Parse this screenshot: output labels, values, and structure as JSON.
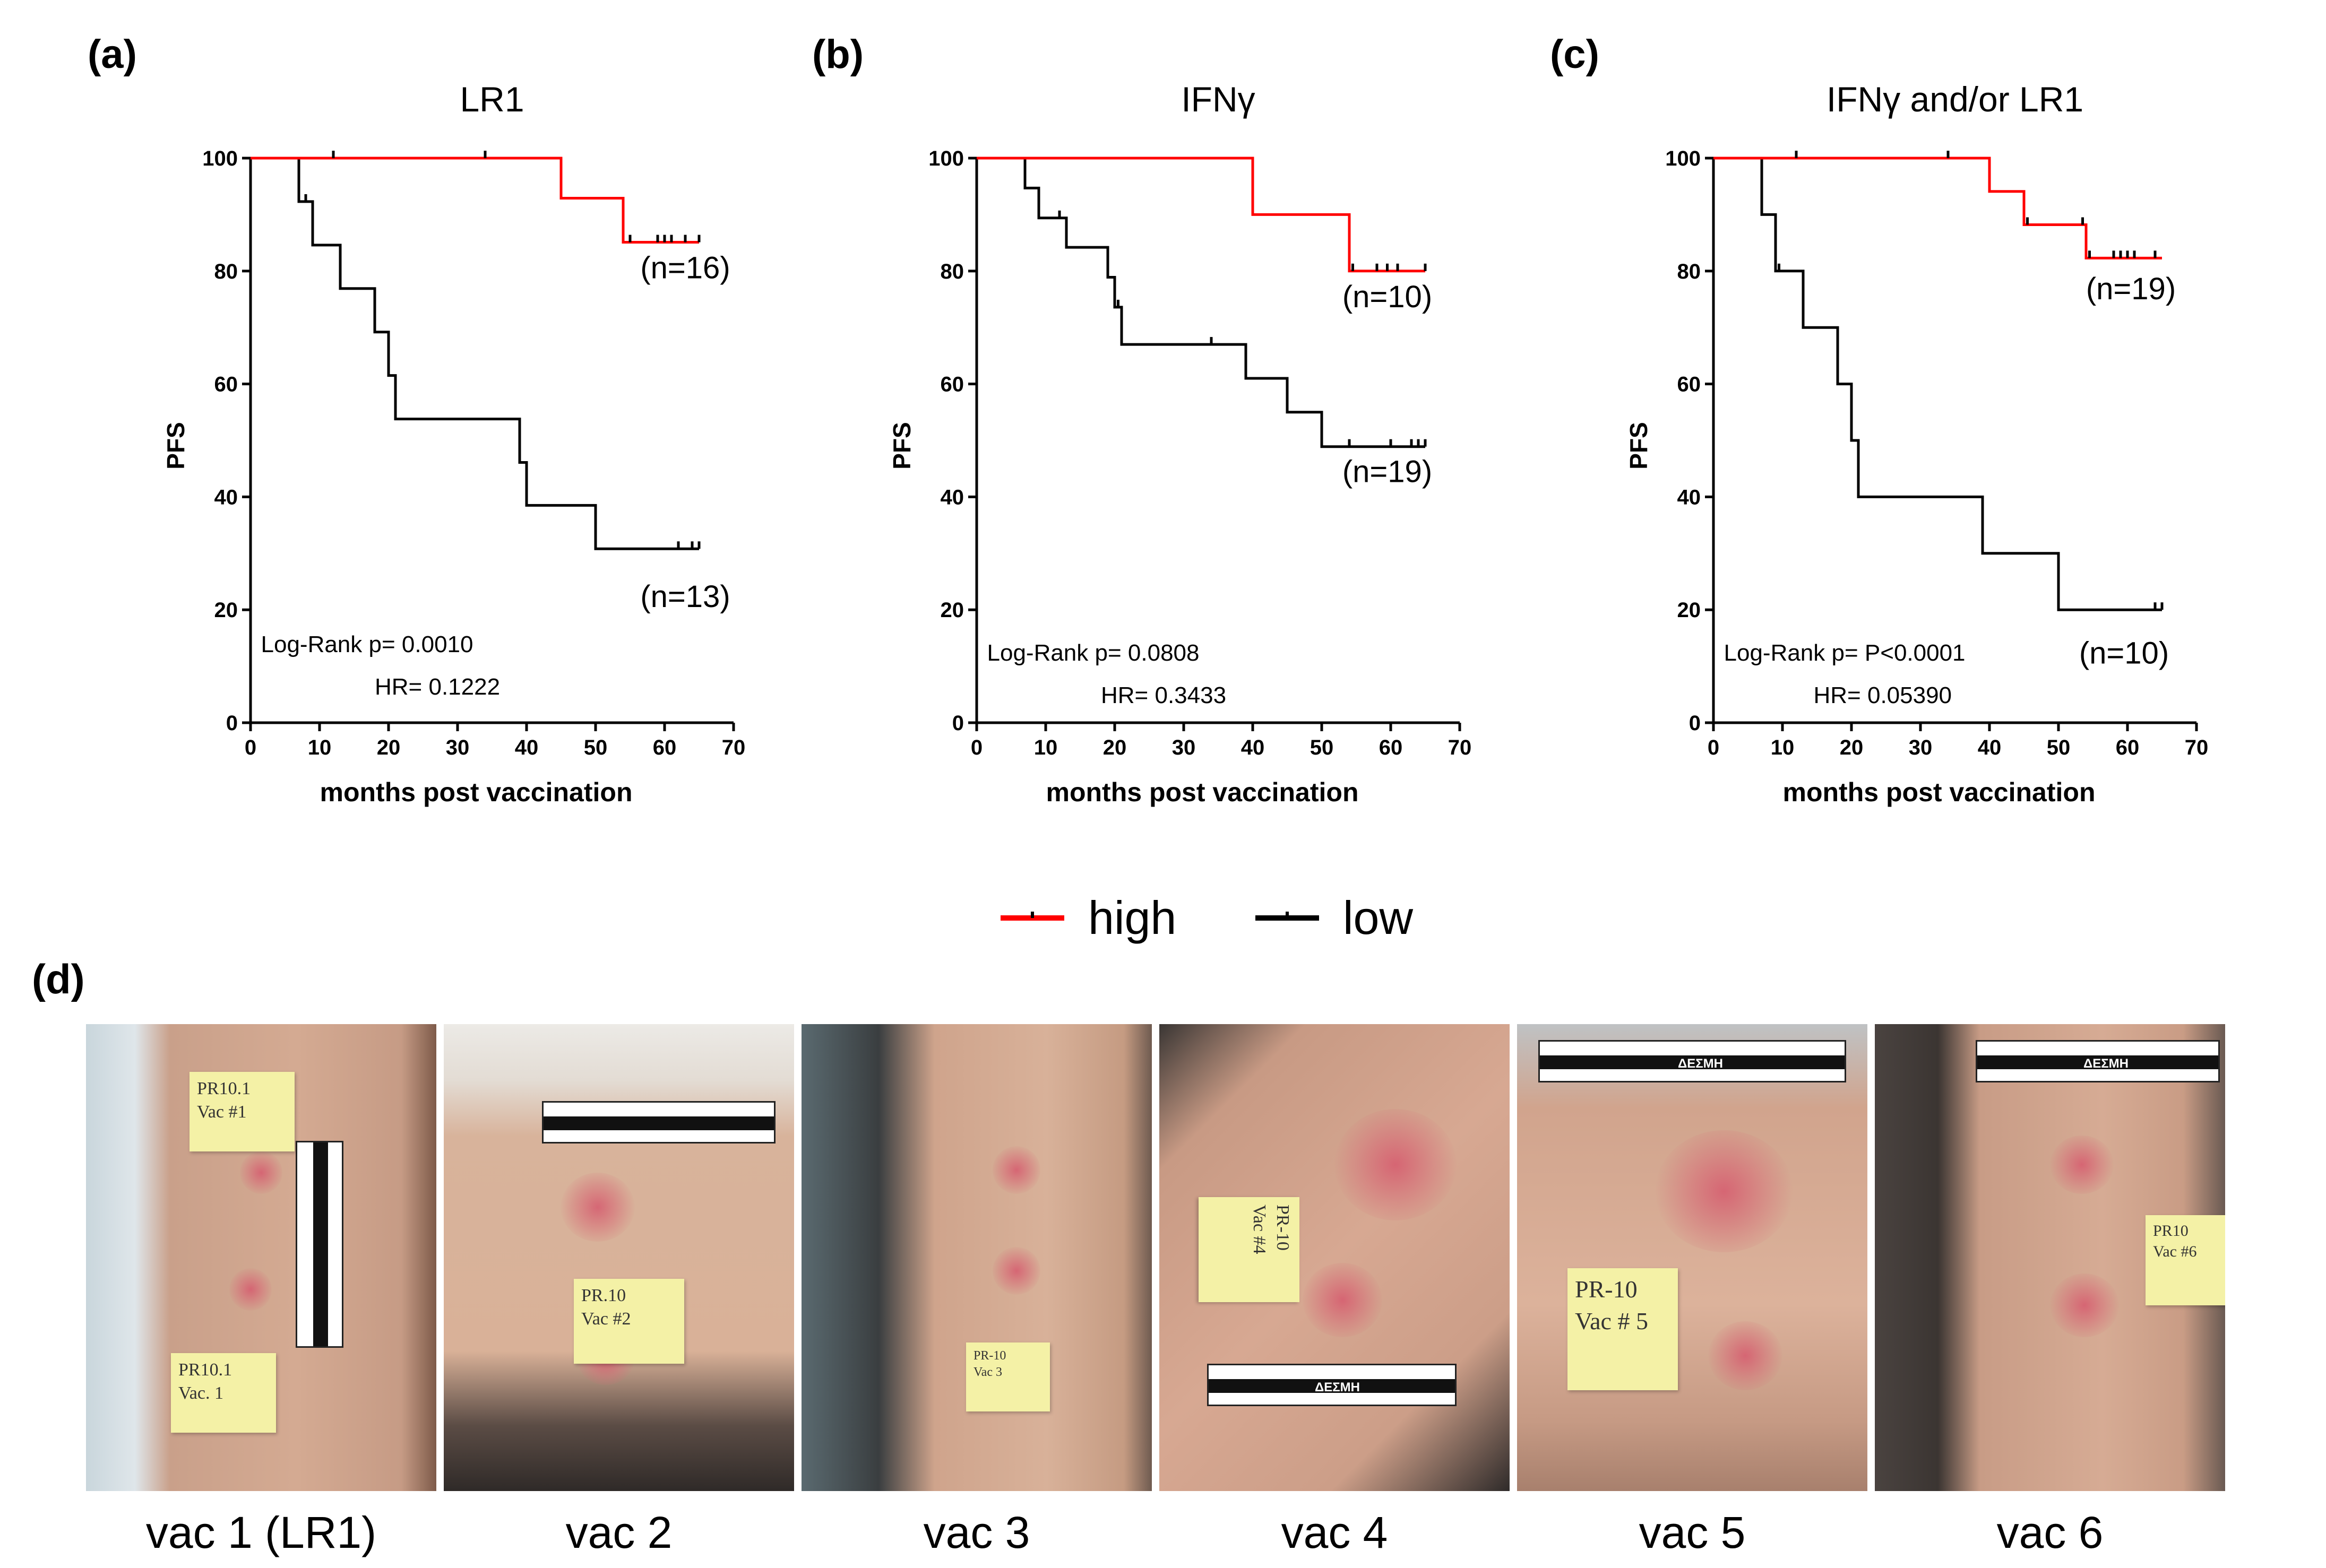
{
  "figure": {
    "legend": [
      {
        "label": "high",
        "color": "#ff0000"
      },
      {
        "label": "low",
        "color": "#000000"
      }
    ]
  },
  "chart_data": [
    {
      "type": "line",
      "panel_letter": "(a)",
      "title": "LR1",
      "xlabel": "months post vaccination",
      "ylabel": "PFS",
      "xlim": [
        0,
        70
      ],
      "ylim": [
        0,
        100
      ],
      "xticks": [
        0,
        10,
        20,
        30,
        40,
        50,
        60,
        70
      ],
      "yticks": [
        0,
        20,
        40,
        60,
        80,
        100
      ],
      "annotations": [
        {
          "text": "Log-Rank p=  0.0010",
          "x": 1.5,
          "y": 12.5
        },
        {
          "text": "HR=  0.1222",
          "x": 18,
          "y": 5
        }
      ],
      "series": [
        {
          "name": "high",
          "color": "#ff0000",
          "steps": [
            [
              0,
              100
            ],
            [
              45,
              92.9
            ],
            [
              54,
              85.1
            ],
            [
              65,
              85.1
            ]
          ],
          "censors": [
            [
              12,
              100
            ],
            [
              34,
              100
            ],
            [
              55,
              85.1
            ],
            [
              59,
              85.1
            ],
            [
              60,
              85.1
            ],
            [
              61,
              85.1
            ],
            [
              63,
              85.1
            ],
            [
              65,
              85.1
            ]
          ],
          "n_label": "(n=16)",
          "n_label_pos": [
            63,
            78.7
          ]
        },
        {
          "name": "low",
          "color": "#000000",
          "steps": [
            [
              0,
              100
            ],
            [
              7,
              92.3
            ],
            [
              9,
              84.6
            ],
            [
              13,
              76.9
            ],
            [
              18,
              69.2
            ],
            [
              20,
              61.5
            ],
            [
              21,
              53.8
            ],
            [
              39,
              46.1
            ],
            [
              40,
              38.5
            ],
            [
              50,
              30.8
            ],
            [
              65,
              30.8
            ]
          ],
          "censors": [
            [
              8,
              92.3
            ],
            [
              20,
              61.5
            ],
            [
              62,
              30.8
            ],
            [
              64,
              30.8
            ],
            [
              65,
              30.8
            ]
          ],
          "n_label": "(n=13)",
          "n_label_pos": [
            63,
            20.5
          ]
        }
      ]
    },
    {
      "type": "line",
      "panel_letter": "(b)",
      "title": "IFNγ",
      "xlabel": "months post vaccination",
      "ylabel": "PFS",
      "xlim": [
        0,
        70
      ],
      "ylim": [
        0,
        100
      ],
      "xticks": [
        0,
        10,
        20,
        30,
        40,
        50,
        60,
        70
      ],
      "yticks": [
        0,
        20,
        40,
        60,
        80,
        100
      ],
      "annotations": [
        {
          "text": "Log-Rank p=  0.0808",
          "x": 1.5,
          "y": 11
        },
        {
          "text": "HR=  0.3433",
          "x": 18,
          "y": 3.5
        }
      ],
      "series": [
        {
          "name": "high",
          "color": "#ff0000",
          "steps": [
            [
              0,
              100
            ],
            [
              40,
              90
            ],
            [
              54,
              80
            ],
            [
              65,
              80
            ]
          ],
          "censors": [
            [
              54.5,
              80
            ],
            [
              58,
              80
            ],
            [
              59.5,
              80
            ],
            [
              61,
              80
            ],
            [
              65,
              80
            ]
          ],
          "n_label": "(n=10)",
          "n_label_pos": [
            59.5,
            73.6
          ]
        },
        {
          "name": "low",
          "color": "#000000",
          "steps": [
            [
              0,
              100
            ],
            [
              7,
              94.7
            ],
            [
              9,
              89.4
            ],
            [
              13,
              84.2
            ],
            [
              19,
              78.9
            ],
            [
              20,
              73.6
            ],
            [
              21,
              67
            ],
            [
              39,
              61
            ],
            [
              45,
              55
            ],
            [
              50,
              48.9
            ],
            [
              65,
              48.9
            ]
          ],
          "censors": [
            [
              12,
              89.4
            ],
            [
              20.5,
              73.6
            ],
            [
              34,
              67
            ],
            [
              54,
              48.9
            ],
            [
              60,
              48.9
            ],
            [
              63,
              48.9
            ],
            [
              64,
              48.9
            ],
            [
              65,
              48.9
            ]
          ],
          "n_label": "(n=19)",
          "n_label_pos": [
            59.5,
            42.6
          ]
        }
      ]
    },
    {
      "type": "line",
      "panel_letter": "(c)",
      "title": "IFNγ and/or LR1",
      "xlabel": "months post vaccination",
      "ylabel": "PFS",
      "xlim": [
        0,
        70
      ],
      "ylim": [
        0,
        100
      ],
      "xticks": [
        0,
        10,
        20,
        30,
        40,
        50,
        60,
        70
      ],
      "yticks": [
        0,
        20,
        40,
        60,
        80,
        100
      ],
      "annotations": [
        {
          "text": "Log-Rank p=  P<0.0001",
          "x": 1.5,
          "y": 11
        },
        {
          "text": "HR=  0.05390",
          "x": 14.5,
          "y": 3.5
        }
      ],
      "series": [
        {
          "name": "high",
          "color": "#ff0000",
          "steps": [
            [
              0,
              100
            ],
            [
              40,
              94.1
            ],
            [
              45,
              88.2
            ],
            [
              54,
              82.3
            ],
            [
              65,
              82.3
            ]
          ],
          "censors": [
            [
              12,
              100
            ],
            [
              34,
              100
            ],
            [
              45.5,
              88.2
            ],
            [
              53.5,
              88.2
            ],
            [
              54.5,
              82.3
            ],
            [
              58,
              82.3
            ],
            [
              59,
              82.3
            ],
            [
              60,
              82.3
            ],
            [
              61,
              82.3
            ],
            [
              64,
              82.3
            ]
          ],
          "n_label": "(n=19)",
          "n_label_pos": [
            60.5,
            75
          ]
        },
        {
          "name": "low",
          "color": "#000000",
          "steps": [
            [
              0,
              100
            ],
            [
              7,
              90
            ],
            [
              9,
              80
            ],
            [
              13,
              70
            ],
            [
              18,
              60
            ],
            [
              20,
              50
            ],
            [
              21,
              40
            ],
            [
              39,
              30
            ],
            [
              50,
              20
            ],
            [
              65,
              20
            ]
          ],
          "censors": [
            [
              9.5,
              80
            ],
            [
              64,
              20
            ],
            [
              65,
              20
            ]
          ],
          "n_label": "(n=10)",
          "n_label_pos": [
            59.5,
            10.5
          ]
        }
      ]
    }
  ],
  "photos": {
    "panel_letter": "(d)",
    "items": [
      {
        "caption": "vac 1 (LR1)",
        "notes": [
          "PR10.1\nVac #1",
          "PR10.1\nVac. 1"
        ]
      },
      {
        "caption": "vac 2",
        "notes": [
          "PR.10\nVac #2"
        ]
      },
      {
        "caption": "vac 3",
        "notes": [
          "PR-10\nVac 3"
        ]
      },
      {
        "caption": "vac 4",
        "notes": [
          "PR-10\nVac #4"
        ],
        "ruler_text": "ΔΕΣΜΗ"
      },
      {
        "caption": "vac 5",
        "notes": [
          "PR-10\nVac # 5"
        ],
        "ruler_text": "ΔΕΣΜΗ"
      },
      {
        "caption": "vac 6",
        "notes": [
          "PR10\nVac #6"
        ],
        "ruler_text": "ΔΕΣΜΗ"
      }
    ]
  }
}
